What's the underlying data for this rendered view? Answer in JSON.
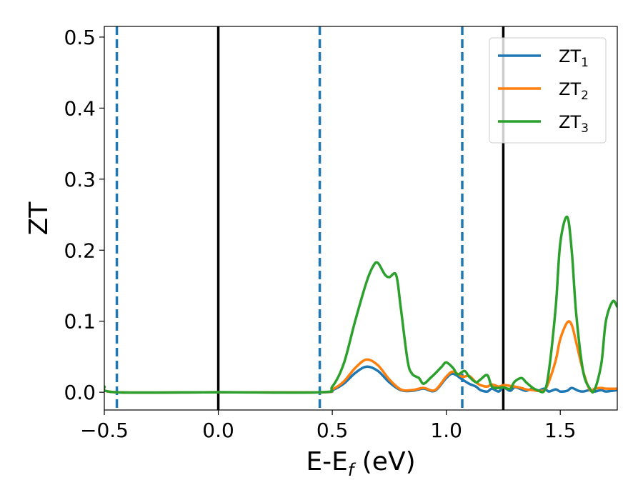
{
  "chart_data": {
    "type": "line",
    "title": "",
    "xlabel_main": "E-E",
    "xlabel_sub": "f",
    "xlabel_tail": " (eV)",
    "ylabel": "ZT",
    "xlim": [
      -0.5,
      1.75
    ],
    "ylim": [
      -0.025,
      0.515
    ],
    "xticks": [
      -0.5,
      0.0,
      0.5,
      1.0,
      1.5
    ],
    "xtick_labels": [
      "−0.5",
      "0.0",
      "0.5",
      "1.0",
      "1.5"
    ],
    "yticks": [
      0.0,
      0.1,
      0.2,
      0.3,
      0.4,
      0.5
    ],
    "ytick_labels": [
      "0.0",
      "0.1",
      "0.2",
      "0.3",
      "0.4",
      "0.5"
    ],
    "grid": false,
    "legend_position": "top-right",
    "vlines": [
      {
        "x": -0.445,
        "style": "dashed",
        "color": "#1f77b4"
      },
      {
        "x": 0.0,
        "style": "solid",
        "color": "#000000"
      },
      {
        "x": 0.445,
        "style": "dashed",
        "color": "#1f77b4"
      },
      {
        "x": 1.07,
        "style": "dashed",
        "color": "#1f77b4"
      },
      {
        "x": 1.25,
        "style": "solid",
        "color": "#000000"
      }
    ],
    "series": [
      {
        "label_main": "ZT",
        "label_sub": "1",
        "color": "#1f77b4",
        "x": [
          -0.5,
          -0.45,
          0.0,
          0.45,
          0.5,
          0.55,
          0.6,
          0.65,
          0.7,
          0.75,
          0.8,
          0.85,
          0.9,
          0.95,
          1.0,
          1.03,
          1.07,
          1.1,
          1.13,
          1.15,
          1.18,
          1.2,
          1.23,
          1.25,
          1.28,
          1.3,
          1.33,
          1.35,
          1.38,
          1.4,
          1.43,
          1.45,
          1.48,
          1.5,
          1.53,
          1.55,
          1.58,
          1.6,
          1.63,
          1.65,
          1.68,
          1.7,
          1.75
        ],
        "y": [
          0.008,
          0.0,
          0.0,
          0.0,
          0.003,
          0.012,
          0.027,
          0.036,
          0.03,
          0.014,
          0.003,
          0.002,
          0.005,
          0.002,
          0.02,
          0.026,
          0.018,
          0.012,
          0.008,
          0.003,
          0.001,
          0.005,
          0.001,
          0.007,
          0.002,
          0.007,
          0.004,
          0.002,
          0.005,
          0.002,
          0.005,
          0.001,
          0.004,
          0.001,
          0.002,
          0.006,
          0.002,
          0.001,
          0.003,
          0.001,
          0.003,
          0.001,
          0.003
        ]
      },
      {
        "label_main": "ZT",
        "label_sub": "2",
        "color": "#ff7f0e",
        "x": [
          -0.5,
          -0.45,
          0.0,
          0.45,
          0.5,
          0.55,
          0.6,
          0.65,
          0.7,
          0.75,
          0.8,
          0.85,
          0.9,
          0.95,
          1.0,
          1.03,
          1.07,
          1.1,
          1.13,
          1.15,
          1.18,
          1.2,
          1.23,
          1.25,
          1.28,
          1.3,
          1.33,
          1.35,
          1.38,
          1.4,
          1.43,
          1.45,
          1.48,
          1.5,
          1.53,
          1.55,
          1.57,
          1.6,
          1.63,
          1.65,
          1.68,
          1.7,
          1.75
        ],
        "y": [
          0.008,
          0.0,
          0.0,
          0.0,
          0.004,
          0.015,
          0.034,
          0.046,
          0.038,
          0.018,
          0.004,
          0.003,
          0.006,
          0.003,
          0.022,
          0.029,
          0.022,
          0.023,
          0.014,
          0.01,
          0.008,
          0.011,
          0.008,
          0.01,
          0.009,
          0.008,
          0.006,
          0.004,
          0.003,
          0.002,
          0.003,
          0.015,
          0.045,
          0.075,
          0.098,
          0.095,
          0.07,
          0.03,
          0.003,
          0.005,
          0.006,
          0.005,
          0.005
        ]
      },
      {
        "label_main": "ZT",
        "label_sub": "3",
        "color": "#2ca02c",
        "x": [
          -0.5,
          -0.45,
          0.0,
          0.45,
          0.5,
          0.55,
          0.6,
          0.65,
          0.68,
          0.7,
          0.73,
          0.75,
          0.78,
          0.8,
          0.83,
          0.85,
          0.88,
          0.9,
          0.93,
          0.95,
          0.98,
          1.0,
          1.03,
          1.05,
          1.08,
          1.1,
          1.13,
          1.15,
          1.18,
          1.2,
          1.23,
          1.25,
          1.28,
          1.3,
          1.33,
          1.35,
          1.38,
          1.4,
          1.43,
          1.45,
          1.48,
          1.5,
          1.53,
          1.55,
          1.57,
          1.6,
          1.63,
          1.65,
          1.68,
          1.7,
          1.73,
          1.75
        ],
        "y": [
          0.008,
          0.0,
          0.0,
          0.0,
          0.008,
          0.04,
          0.1,
          0.155,
          0.178,
          0.182,
          0.166,
          0.162,
          0.165,
          0.12,
          0.045,
          0.026,
          0.02,
          0.012,
          0.02,
          0.026,
          0.036,
          0.042,
          0.034,
          0.025,
          0.03,
          0.022,
          0.014,
          0.018,
          0.024,
          0.008,
          0.006,
          0.007,
          0.005,
          0.015,
          0.02,
          0.014,
          0.006,
          0.003,
          0.002,
          0.03,
          0.12,
          0.21,
          0.247,
          0.2,
          0.11,
          0.03,
          0.005,
          0.003,
          0.04,
          0.1,
          0.128,
          0.12
        ]
      }
    ]
  }
}
